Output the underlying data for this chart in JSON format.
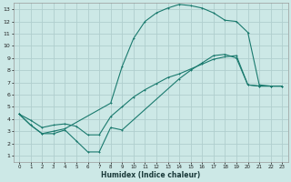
{
  "xlabel": "Humidex (Indice chaleur)",
  "bg_color": "#cce8e6",
  "grid_color": "#b0cece",
  "line_color": "#1a7a6e",
  "xlim": [
    -0.5,
    23.5
  ],
  "ylim": [
    0.5,
    13.5
  ],
  "xticks": [
    0,
    1,
    2,
    3,
    4,
    5,
    6,
    7,
    8,
    9,
    10,
    11,
    12,
    13,
    14,
    15,
    16,
    17,
    18,
    19,
    20,
    21,
    22,
    23
  ],
  "yticks": [
    1,
    2,
    3,
    4,
    5,
    6,
    7,
    8,
    9,
    10,
    11,
    12,
    13
  ],
  "curve_top_x": [
    0,
    1,
    2,
    3,
    4,
    8,
    9,
    10,
    11,
    12,
    13,
    14,
    15,
    16,
    17,
    18,
    19,
    20,
    21,
    22,
    23
  ],
  "curve_top_y": [
    4.4,
    3.5,
    2.8,
    3.0,
    3.2,
    5.3,
    8.3,
    10.6,
    12.0,
    12.7,
    13.1,
    13.4,
    13.3,
    13.1,
    12.7,
    12.1,
    12.0,
    11.1,
    6.8,
    6.7,
    6.7
  ],
  "curve_bot_x": [
    0,
    1,
    2,
    3,
    4,
    5,
    6,
    7,
    8,
    9,
    14,
    15,
    16,
    17,
    18,
    19,
    20,
    21,
    22,
    23
  ],
  "curve_bot_y": [
    4.4,
    3.5,
    2.8,
    2.8,
    3.1,
    2.2,
    1.3,
    1.3,
    3.3,
    3.1,
    7.3,
    8.0,
    8.6,
    9.2,
    9.3,
    9.0,
    6.8,
    6.7,
    6.7,
    6.7
  ],
  "curve_mid_x": [
    0,
    1,
    2,
    3,
    4,
    5,
    6,
    7,
    8,
    9,
    10,
    11,
    12,
    13,
    14,
    15,
    16,
    17,
    18,
    19,
    20,
    21,
    22,
    23
  ],
  "curve_mid_y": [
    4.4,
    3.9,
    3.3,
    3.5,
    3.6,
    3.4,
    2.7,
    2.7,
    4.2,
    5.0,
    5.8,
    6.4,
    6.9,
    7.4,
    7.7,
    8.1,
    8.5,
    8.9,
    9.1,
    9.2,
    6.8,
    6.7,
    6.7,
    6.7
  ]
}
